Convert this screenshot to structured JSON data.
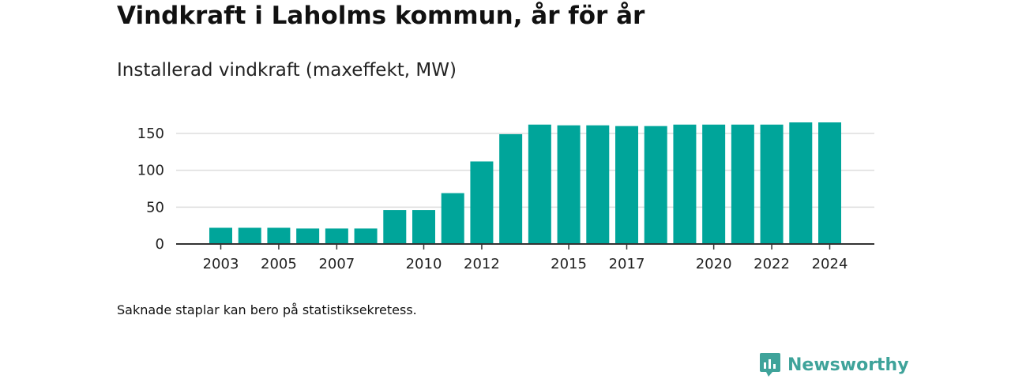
{
  "header": {
    "title": "Vindkraft i Laholms kommun, år för år",
    "subtitle": "Installerad vindkraft (maxeffekt, MW)"
  },
  "footer": {
    "note": "Saknade staplar kan bero på statistiksekretess.",
    "brand_name": "Newsworthy",
    "brand_icon": "bar-chart-speech-bubble-icon"
  },
  "colors": {
    "bar": "#00a59a",
    "grid": "#dddddd",
    "axis": "#333333",
    "brand": "#3fa39a"
  },
  "chart_data": {
    "type": "bar",
    "title": "Vindkraft i Laholms kommun, år för år",
    "subtitle": "Installerad vindkraft (maxeffekt, MW)",
    "xlabel": "",
    "ylabel": "",
    "x_min": 2002,
    "x_max": 2025,
    "ylim": [
      0,
      150
    ],
    "y_ticks": [
      0,
      50,
      100,
      150
    ],
    "x_ticks": [
      2003,
      2005,
      2007,
      2010,
      2012,
      2015,
      2017,
      2020,
      2022,
      2024
    ],
    "grid": true,
    "legend": "none",
    "categories": [
      2003,
      2004,
      2005,
      2006,
      2007,
      2008,
      2009,
      2010,
      2011,
      2012,
      2013,
      2014,
      2015,
      2016,
      2017,
      2018,
      2019,
      2020,
      2021,
      2022,
      2023,
      2024
    ],
    "values": [
      22,
      22,
      22,
      21,
      21,
      21,
      46,
      46,
      69,
      112,
      149,
      162,
      161,
      161,
      160,
      160,
      162,
      162,
      162,
      162,
      165,
      165
    ]
  }
}
